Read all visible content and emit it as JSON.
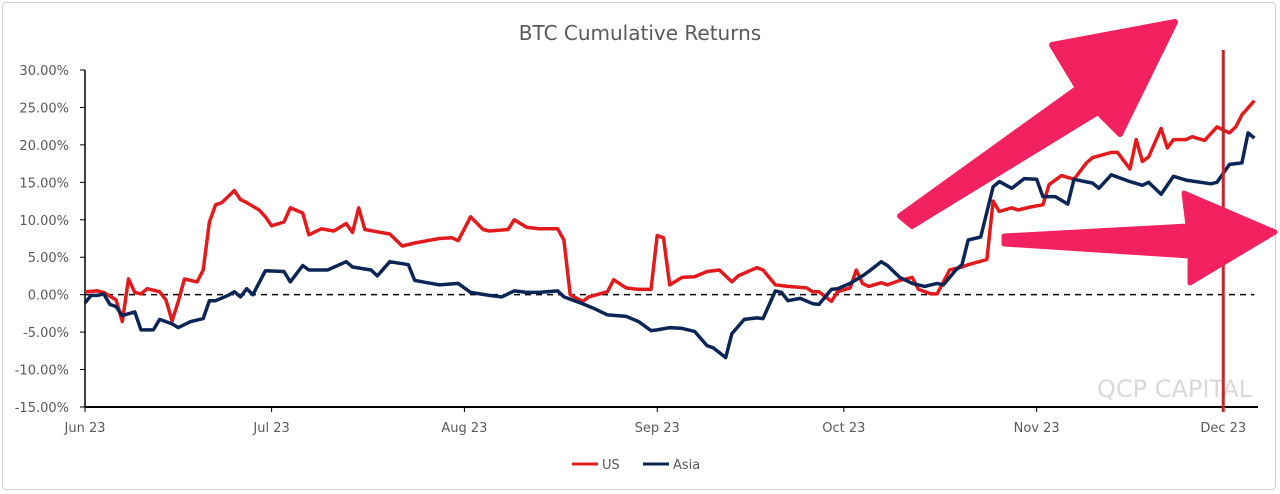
{
  "chart_data": {
    "type": "line",
    "title": "BTC Cumulative Returns",
    "xlabel": "",
    "ylabel": "",
    "ylim": [
      -15,
      30
    ],
    "xlim": [
      "2023-06-01",
      "2023-12-06"
    ],
    "y_ticks": [
      "30.00%",
      "25.00%",
      "20.00%",
      "15.00%",
      "10.00%",
      "5.00%",
      "0.00%",
      "-5.00%",
      "-10.00%",
      "-15.00%"
    ],
    "y_tick_values": [
      30,
      25,
      20,
      15,
      10,
      5,
      0,
      -5,
      -10,
      -15
    ],
    "x_ticks": [
      {
        "label": "Jun 23",
        "date": "2023-06-01"
      },
      {
        "label": "Jul 23",
        "date": "2023-07-01"
      },
      {
        "label": "Aug 23",
        "date": "2023-08-01"
      },
      {
        "label": "Sep 23",
        "date": "2023-09-01"
      },
      {
        "label": "Oct 23",
        "date": "2023-10-01"
      },
      {
        "label": "Nov 23",
        "date": "2023-11-01"
      },
      {
        "label": "Dec 23",
        "date": "2023-12-01"
      }
    ],
    "grid": false,
    "zero_line": "dashed",
    "legend_placement": "bottom",
    "vertical_marker_date": "2023-12-01",
    "watermark": "QCP CAPITAL",
    "colors": {
      "US": "#e31a1c",
      "Asia": "#0c2557",
      "marker": "#c0282d",
      "arrows": "#f2215f"
    },
    "series": [
      {
        "name": "US",
        "points": [
          [
            "2023-06-01",
            0.4
          ],
          [
            "2023-06-03",
            0.5
          ],
          [
            "2023-06-04",
            0.3
          ],
          [
            "2023-06-06",
            -0.7
          ],
          [
            "2023-06-07",
            -3.6
          ],
          [
            "2023-06-08",
            2.1
          ],
          [
            "2023-06-09",
            0.3
          ],
          [
            "2023-06-10",
            0.1
          ],
          [
            "2023-06-11",
            0.8
          ],
          [
            "2023-06-13",
            0.4
          ],
          [
            "2023-06-14",
            -0.7
          ],
          [
            "2023-06-15",
            -3.5
          ],
          [
            "2023-06-16",
            -0.9
          ],
          [
            "2023-06-17",
            2.1
          ],
          [
            "2023-06-19",
            1.7
          ],
          [
            "2023-06-20",
            3.3
          ],
          [
            "2023-06-21",
            9.7
          ],
          [
            "2023-06-22",
            12.0
          ],
          [
            "2023-06-23",
            12.3
          ],
          [
            "2023-06-25",
            13.9
          ],
          [
            "2023-06-26",
            12.7
          ],
          [
            "2023-06-27",
            12.3
          ],
          [
            "2023-06-29",
            11.3
          ],
          [
            "2023-06-30",
            10.4
          ],
          [
            "2023-07-01",
            9.2
          ],
          [
            "2023-07-03",
            9.7
          ],
          [
            "2023-07-04",
            11.6
          ],
          [
            "2023-07-06",
            10.9
          ],
          [
            "2023-07-07",
            8.0
          ],
          [
            "2023-07-09",
            8.8
          ],
          [
            "2023-07-11",
            8.5
          ],
          [
            "2023-07-13",
            9.5
          ],
          [
            "2023-07-14",
            8.3
          ],
          [
            "2023-07-15",
            11.6
          ],
          [
            "2023-07-16",
            8.7
          ],
          [
            "2023-07-18",
            8.4
          ],
          [
            "2023-07-20",
            8.1
          ],
          [
            "2023-07-22",
            6.5
          ],
          [
            "2023-07-24",
            6.9
          ],
          [
            "2023-07-26",
            7.2
          ],
          [
            "2023-07-28",
            7.5
          ],
          [
            "2023-07-30",
            7.6
          ],
          [
            "2023-07-31",
            7.2
          ],
          [
            "2023-08-02",
            10.4
          ],
          [
            "2023-08-04",
            8.7
          ],
          [
            "2023-08-05",
            8.5
          ],
          [
            "2023-08-08",
            8.7
          ],
          [
            "2023-08-09",
            10.0
          ],
          [
            "2023-08-11",
            9.0
          ],
          [
            "2023-08-13",
            8.8
          ],
          [
            "2023-08-16",
            8.8
          ],
          [
            "2023-08-17",
            7.3
          ],
          [
            "2023-08-18",
            0.0
          ],
          [
            "2023-08-20",
            -0.9
          ],
          [
            "2023-08-21",
            -0.3
          ],
          [
            "2023-08-24",
            0.4
          ],
          [
            "2023-08-25",
            2.0
          ],
          [
            "2023-08-27",
            0.9
          ],
          [
            "2023-08-29",
            0.7
          ],
          [
            "2023-08-31",
            0.7
          ],
          [
            "2023-09-01",
            7.9
          ],
          [
            "2023-09-02",
            7.6
          ],
          [
            "2023-09-03",
            1.3
          ],
          [
            "2023-09-05",
            2.3
          ],
          [
            "2023-09-07",
            2.4
          ],
          [
            "2023-09-09",
            3.1
          ],
          [
            "2023-09-11",
            3.3
          ],
          [
            "2023-09-13",
            1.7
          ],
          [
            "2023-09-14",
            2.5
          ],
          [
            "2023-09-17",
            3.6
          ],
          [
            "2023-09-18",
            3.3
          ],
          [
            "2023-09-20",
            1.3
          ],
          [
            "2023-09-22",
            1.1
          ],
          [
            "2023-09-25",
            0.9
          ],
          [
            "2023-09-26",
            0.4
          ],
          [
            "2023-09-27",
            0.4
          ],
          [
            "2023-09-29",
            -0.9
          ],
          [
            "2023-09-30",
            0.4
          ],
          [
            "2023-10-02",
            0.9
          ],
          [
            "2023-10-03",
            3.3
          ],
          [
            "2023-10-04",
            1.5
          ],
          [
            "2023-10-05",
            1.1
          ],
          [
            "2023-10-07",
            1.6
          ],
          [
            "2023-10-08",
            1.3
          ],
          [
            "2023-10-10",
            1.9
          ],
          [
            "2023-10-12",
            2.3
          ],
          [
            "2023-10-13",
            0.7
          ],
          [
            "2023-10-15",
            0.1
          ],
          [
            "2023-10-16",
            0.1
          ],
          [
            "2023-10-18",
            3.3
          ],
          [
            "2023-10-20",
            3.7
          ],
          [
            "2023-10-21",
            4.0
          ],
          [
            "2023-10-24",
            4.7
          ],
          [
            "2023-10-25",
            12.5
          ],
          [
            "2023-10-26",
            11.1
          ],
          [
            "2023-10-28",
            11.6
          ],
          [
            "2023-10-29",
            11.3
          ],
          [
            "2023-10-31",
            11.7
          ],
          [
            "2023-11-02",
            12.0
          ],
          [
            "2023-11-03",
            14.7
          ],
          [
            "2023-11-05",
            15.9
          ],
          [
            "2023-11-07",
            15.4
          ],
          [
            "2023-11-09",
            17.6
          ],
          [
            "2023-11-10",
            18.3
          ],
          [
            "2023-11-13",
            19.0
          ],
          [
            "2023-11-14",
            19.0
          ],
          [
            "2023-11-16",
            16.8
          ],
          [
            "2023-11-17",
            20.7
          ],
          [
            "2023-11-18",
            17.8
          ],
          [
            "2023-11-19",
            18.4
          ],
          [
            "2023-11-21",
            22.2
          ],
          [
            "2023-11-22",
            19.6
          ],
          [
            "2023-11-23",
            20.7
          ],
          [
            "2023-11-25",
            20.7
          ],
          [
            "2023-11-26",
            21.1
          ],
          [
            "2023-11-28",
            20.6
          ],
          [
            "2023-11-30",
            22.4
          ],
          [
            "2023-12-02",
            21.6
          ],
          [
            "2023-12-03",
            22.4
          ],
          [
            "2023-12-04",
            24.0
          ],
          [
            "2023-12-06",
            25.9
          ]
        ]
      },
      {
        "name": "Asia",
        "points": [
          [
            "2023-06-01",
            -1.1
          ],
          [
            "2023-06-02",
            -0.1
          ],
          [
            "2023-06-03",
            -0.1
          ],
          [
            "2023-06-04",
            0.1
          ],
          [
            "2023-06-05",
            -1.3
          ],
          [
            "2023-06-06",
            -1.6
          ],
          [
            "2023-06-07",
            -2.8
          ],
          [
            "2023-06-09",
            -2.3
          ],
          [
            "2023-06-10",
            -4.7
          ],
          [
            "2023-06-12",
            -4.7
          ],
          [
            "2023-06-13",
            -3.3
          ],
          [
            "2023-06-15",
            -3.9
          ],
          [
            "2023-06-16",
            -4.4
          ],
          [
            "2023-06-18",
            -3.6
          ],
          [
            "2023-06-20",
            -3.2
          ],
          [
            "2023-06-21",
            -0.8
          ],
          [
            "2023-06-22",
            -0.8
          ],
          [
            "2023-06-24",
            -0.1
          ],
          [
            "2023-06-25",
            0.4
          ],
          [
            "2023-06-26",
            -0.3
          ],
          [
            "2023-06-27",
            0.8
          ],
          [
            "2023-06-28",
            0.0
          ],
          [
            "2023-06-30",
            3.2
          ],
          [
            "2023-07-03",
            3.1
          ],
          [
            "2023-07-04",
            1.7
          ],
          [
            "2023-07-06",
            3.9
          ],
          [
            "2023-07-07",
            3.3
          ],
          [
            "2023-07-10",
            3.3
          ],
          [
            "2023-07-13",
            4.4
          ],
          [
            "2023-07-14",
            3.7
          ],
          [
            "2023-07-17",
            3.3
          ],
          [
            "2023-07-18",
            2.5
          ],
          [
            "2023-07-20",
            4.4
          ],
          [
            "2023-07-23",
            4.0
          ],
          [
            "2023-07-24",
            1.9
          ],
          [
            "2023-07-26",
            1.6
          ],
          [
            "2023-07-28",
            1.3
          ],
          [
            "2023-07-31",
            1.5
          ],
          [
            "2023-08-02",
            0.3
          ],
          [
            "2023-08-05",
            -0.1
          ],
          [
            "2023-08-07",
            -0.3
          ],
          [
            "2023-08-09",
            0.5
          ],
          [
            "2023-08-11",
            0.3
          ],
          [
            "2023-08-13",
            0.3
          ],
          [
            "2023-08-16",
            0.5
          ],
          [
            "2023-08-17",
            -0.3
          ],
          [
            "2023-08-20",
            -1.2
          ],
          [
            "2023-08-22",
            -1.9
          ],
          [
            "2023-08-24",
            -2.7
          ],
          [
            "2023-08-27",
            -2.9
          ],
          [
            "2023-08-29",
            -3.6
          ],
          [
            "2023-08-31",
            -4.8
          ],
          [
            "2023-09-01",
            -4.7
          ],
          [
            "2023-09-03",
            -4.4
          ],
          [
            "2023-09-05",
            -4.5
          ],
          [
            "2023-09-07",
            -4.9
          ],
          [
            "2023-09-09",
            -6.8
          ],
          [
            "2023-09-10",
            -7.1
          ],
          [
            "2023-09-12",
            -8.4
          ],
          [
            "2023-09-13",
            -5.2
          ],
          [
            "2023-09-15",
            -3.3
          ],
          [
            "2023-09-17",
            -3.1
          ],
          [
            "2023-09-18",
            -3.2
          ],
          [
            "2023-09-20",
            0.5
          ],
          [
            "2023-09-21",
            0.3
          ],
          [
            "2023-09-22",
            -0.8
          ],
          [
            "2023-09-24",
            -0.5
          ],
          [
            "2023-09-26",
            -1.2
          ],
          [
            "2023-09-27",
            -1.3
          ],
          [
            "2023-09-29",
            0.7
          ],
          [
            "2023-09-30",
            0.8
          ],
          [
            "2023-10-02",
            1.5
          ],
          [
            "2023-10-04",
            2.5
          ],
          [
            "2023-10-05",
            3.1
          ],
          [
            "2023-10-07",
            4.4
          ],
          [
            "2023-10-08",
            3.9
          ],
          [
            "2023-10-10",
            2.3
          ],
          [
            "2023-10-12",
            1.5
          ],
          [
            "2023-10-14",
            1.1
          ],
          [
            "2023-10-16",
            1.5
          ],
          [
            "2023-10-17",
            1.3
          ],
          [
            "2023-10-19",
            3.3
          ],
          [
            "2023-10-20",
            4.0
          ],
          [
            "2023-10-21",
            7.3
          ],
          [
            "2023-10-23",
            7.7
          ],
          [
            "2023-10-25",
            14.4
          ],
          [
            "2023-10-26",
            15.1
          ],
          [
            "2023-10-28",
            14.2
          ],
          [
            "2023-10-30",
            15.5
          ],
          [
            "2023-11-01",
            15.4
          ],
          [
            "2023-11-02",
            13.1
          ],
          [
            "2023-11-04",
            13.1
          ],
          [
            "2023-11-06",
            12.1
          ],
          [
            "2023-11-07",
            15.4
          ],
          [
            "2023-11-10",
            14.9
          ],
          [
            "2023-11-11",
            14.2
          ],
          [
            "2023-11-13",
            16.0
          ],
          [
            "2023-11-16",
            15.1
          ],
          [
            "2023-11-18",
            14.6
          ],
          [
            "2023-11-19",
            15.0
          ],
          [
            "2023-11-21",
            13.4
          ],
          [
            "2023-11-23",
            15.8
          ],
          [
            "2023-11-25",
            15.3
          ],
          [
            "2023-11-29",
            14.8
          ],
          [
            "2023-11-30",
            15.0
          ],
          [
            "2023-12-02",
            17.4
          ],
          [
            "2023-12-04",
            17.6
          ],
          [
            "2023-12-05",
            21.6
          ],
          [
            "2023-12-06",
            20.9
          ]
        ]
      }
    ]
  }
}
